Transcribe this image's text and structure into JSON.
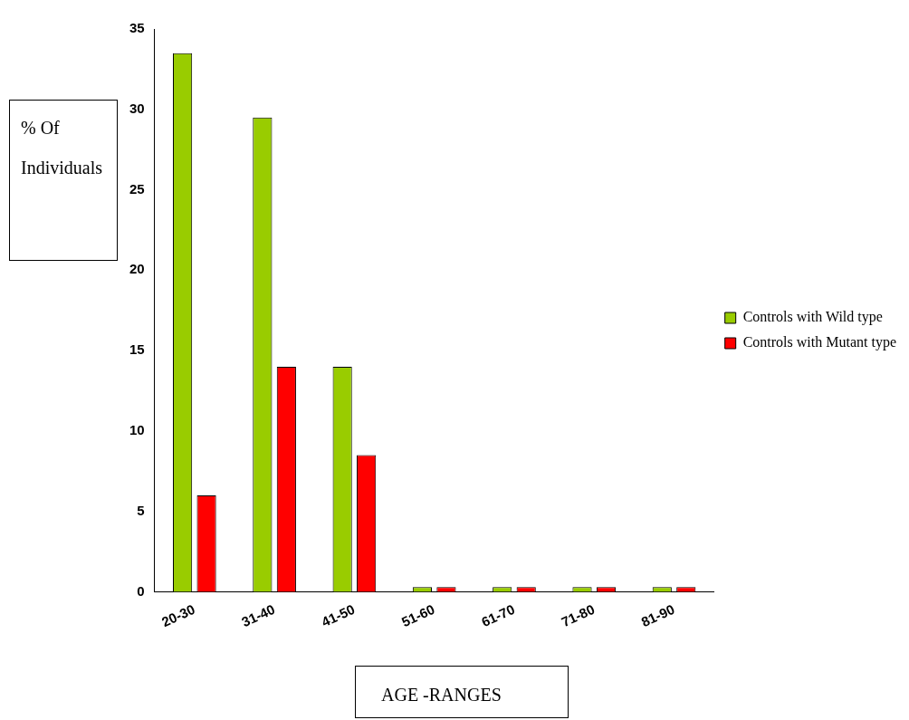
{
  "chart_data": {
    "type": "bar",
    "xlabel": "AGE -RANGES",
    "ylabel": "% Of Individuals",
    "categories": [
      "20-30",
      "31-40",
      "41-50",
      "51-60",
      "61-70",
      "71-80",
      "81-90"
    ],
    "series": [
      {
        "name": "Controls with Wild type",
        "color": "#99cc00",
        "values": [
          33.5,
          29.5,
          14,
          0.3,
          0.3,
          0.3,
          0.3
        ]
      },
      {
        "name": "Controls with Mutant type",
        "color": "#ff0000",
        "values": [
          6,
          14,
          8.5,
          0.3,
          0.3,
          0.3,
          0.3
        ]
      }
    ],
    "ylim": [
      0,
      35
    ],
    "yticks": [
      0,
      5,
      10,
      15,
      20,
      25,
      30,
      35
    ],
    "grid": false,
    "legend": "right"
  }
}
